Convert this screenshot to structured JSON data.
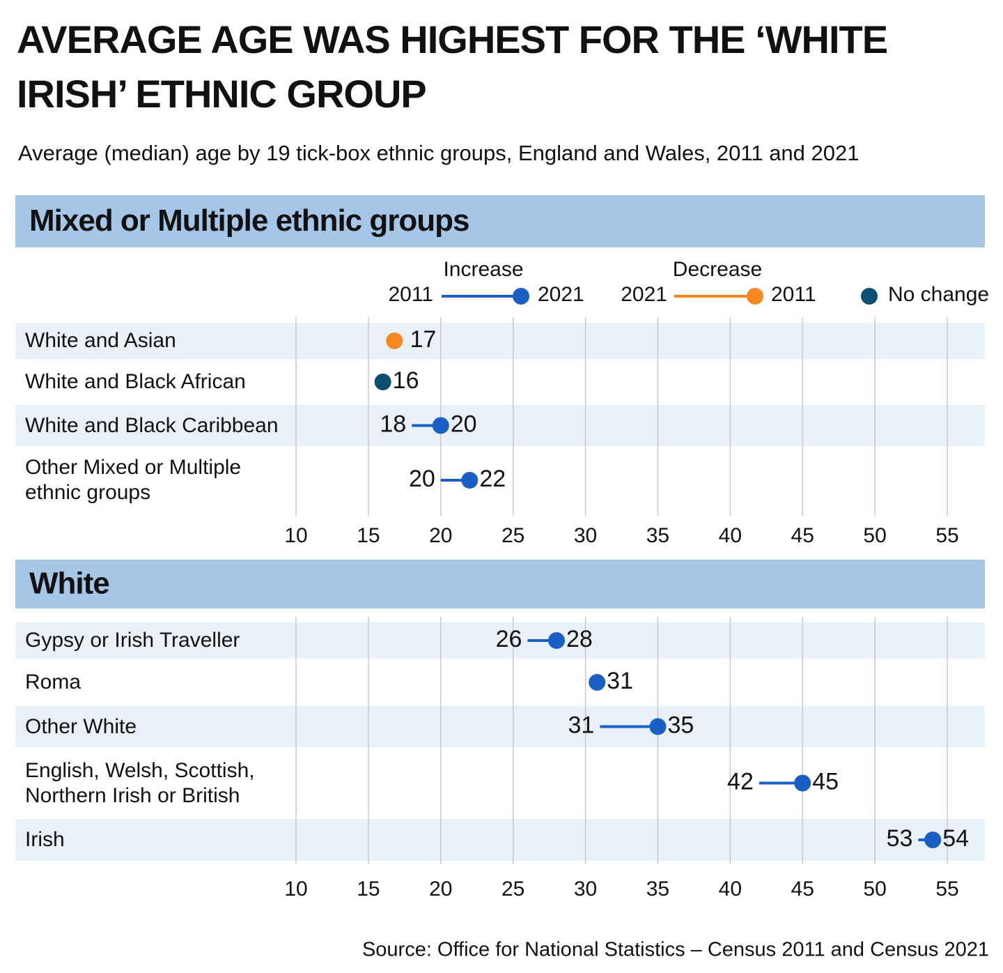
{
  "title": "AVERAGE AGE WAS HIGHEST FOR THE ‘WHITE IRISH’ ETHNIC GROUP",
  "subtitle": "Average (median) age by 19 tick-box ethnic groups, England and Wales, 2011 and 2021",
  "source": "Source: Office for National Statistics – Census 2011 and Census 2021",
  "legend": {
    "increase": "Increase",
    "decrease": "Decrease",
    "no_change": "No change"
  },
  "colors": {
    "increase": "#1a5fc4",
    "decrease": "#f5891f",
    "no_change": "#0d4f70"
  },
  "chart_data": [
    {
      "type": "dumbbell",
      "title": "Mixed or Multiple ethnic groups",
      "categories": [
        "White and Asian",
        "White and Black African",
        "White and Black Caribbean",
        "Other Mixed or Multiple ethnic groups"
      ],
      "series": [
        {
          "name": "2011",
          "values": [
            17.2,
            16,
            18,
            20
          ],
          "value_labels": [
            "17",
            null,
            "18",
            "20"
          ]
        },
        {
          "name": "2021",
          "values": [
            16.8,
            16,
            20,
            22
          ],
          "value_labels": [
            null,
            "16",
            "20",
            "22"
          ]
        }
      ],
      "xlim": [
        10,
        55
      ],
      "xticks": [
        10,
        15,
        20,
        25,
        30,
        35,
        40,
        45,
        50,
        55
      ],
      "grid": true
    },
    {
      "type": "dumbbell",
      "title": "White",
      "categories": [
        "Gypsy or Irish Traveller",
        "Roma",
        "Other White",
        "English, Welsh, Scottish, Northern Irish or British",
        "Irish"
      ],
      "series": [
        {
          "name": "2011",
          "values": [
            26,
            30.6,
            31,
            42,
            53
          ],
          "value_labels": [
            "26",
            null,
            "31",
            "42",
            "53"
          ]
        },
        {
          "name": "2021",
          "values": [
            28,
            30.8,
            35,
            45,
            54
          ],
          "value_labels": [
            "28",
            "31",
            "35",
            "45",
            "54"
          ]
        }
      ],
      "xlim": [
        10,
        55
      ],
      "xticks": [
        10,
        15,
        20,
        25,
        30,
        35,
        40,
        45,
        50,
        55
      ],
      "grid": true
    }
  ]
}
